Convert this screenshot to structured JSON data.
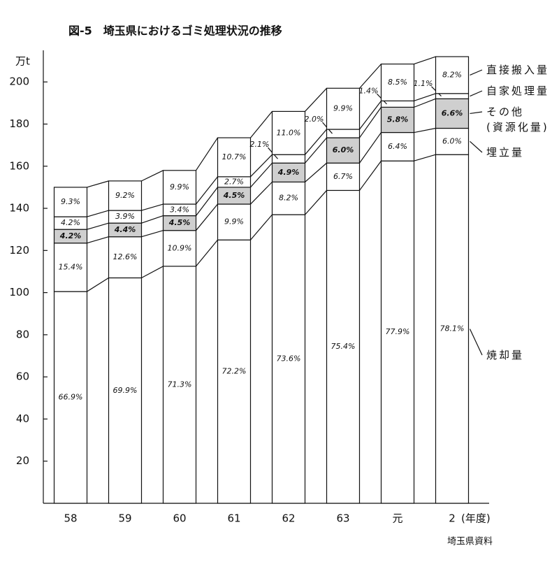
{
  "chart_data": {
    "type": "stacked_bar",
    "title": "図-5　埼玉県におけるゴミ処理状況の推移",
    "y_unit": "万t",
    "x_unit": "(年度)",
    "source": "埼玉県資料",
    "categories": [
      "58",
      "59",
      "60",
      "61",
      "62",
      "63",
      "元",
      "2"
    ],
    "ylim": [
      0,
      215
    ],
    "yticks": [
      20,
      40,
      60,
      80,
      100,
      120,
      140,
      160,
      180,
      200
    ],
    "series": [
      {
        "name": "焼却量",
        "color": "#ffffff",
        "values": [
          100.5,
          107,
          112.5,
          125,
          137,
          148.5,
          162.5,
          165.5
        ],
        "share_labels": [
          "66.9%",
          "69.9%",
          "71.3%",
          "72.2%",
          "73.6%",
          "75.4%",
          "77.9%",
          "78.1%"
        ]
      },
      {
        "name": "埋立量",
        "color": "#ffffff",
        "values": [
          23,
          19.5,
          17,
          17,
          15.5,
          13,
          13.5,
          12.5
        ],
        "share_labels": [
          "15.4%",
          "12.6%",
          "10.9%",
          "9.9%",
          "8.2%",
          "6.7%",
          "6.4%",
          "6.0%"
        ]
      },
      {
        "name": "その他\n(資源化量)",
        "color": "#cfcfcf",
        "values": [
          6.5,
          6.5,
          7,
          8,
          9,
          12,
          12,
          14
        ],
        "share_labels": [
          "4.2%",
          "4.4%",
          "4.5%",
          "4.5%",
          "4.9%",
          "6.0%",
          "5.8%",
          "6.6%"
        ]
      },
      {
        "name": "自家処理量",
        "color": "#ffffff",
        "values": [
          6,
          6,
          5.5,
          5,
          4,
          4,
          3,
          2.5
        ],
        "share_labels": [
          "4.2%",
          "3.9%",
          "3.4%",
          "2.7%",
          "2.1%",
          "2.0%",
          "1.4%",
          "1.1%"
        ]
      },
      {
        "name": "直接搬入量",
        "color": "#ffffff",
        "values": [
          14,
          14,
          16,
          18.5,
          20.5,
          19.5,
          17.5,
          17.5
        ],
        "share_labels": [
          "9.3%",
          "9.2%",
          "9.9%",
          "10.7%",
          "11.0%",
          "9.9%",
          "8.5%",
          "8.2%"
        ]
      }
    ]
  }
}
